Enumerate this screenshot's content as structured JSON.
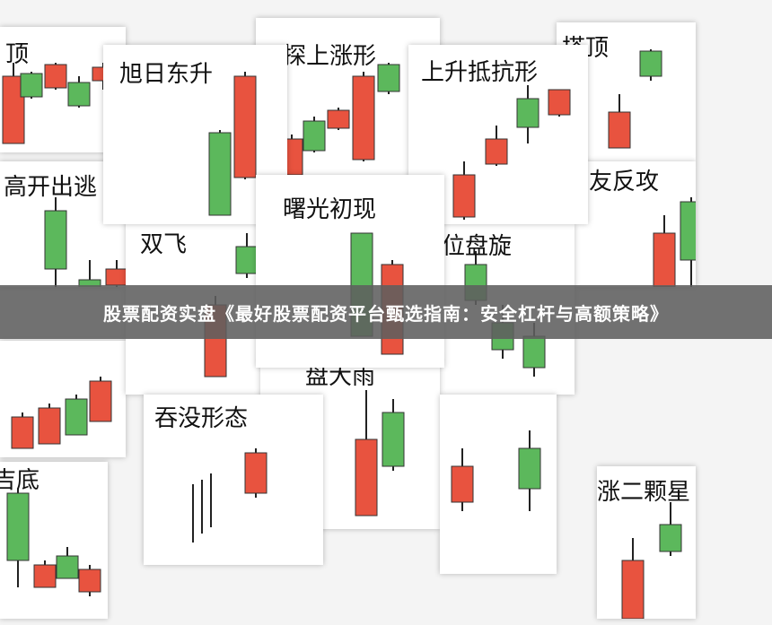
{
  "cards": [
    {
      "title": "顶"
    },
    {
      "title": "探上涨形"
    },
    {
      "title": "搭顶"
    },
    {
      "title": "高开出逃"
    },
    {
      "title": "线友反攻"
    },
    {
      "title": ""
    },
    {
      "title": "吉底"
    },
    {
      "title": "双飞"
    },
    {
      "title": "位盘旋"
    },
    {
      "title": "盘大雨"
    },
    {
      "title": "吞没形态"
    },
    {
      "title": ""
    },
    {
      "title": "涨二颗星"
    },
    {
      "title": "旭日东升"
    },
    {
      "title": "上升抵抗形"
    },
    {
      "title": "曙光初现"
    }
  ],
  "banner": {
    "text": "股票配资实盘《最好股票配资平台甄选指南：安全杠杆与高额策略》"
  }
}
